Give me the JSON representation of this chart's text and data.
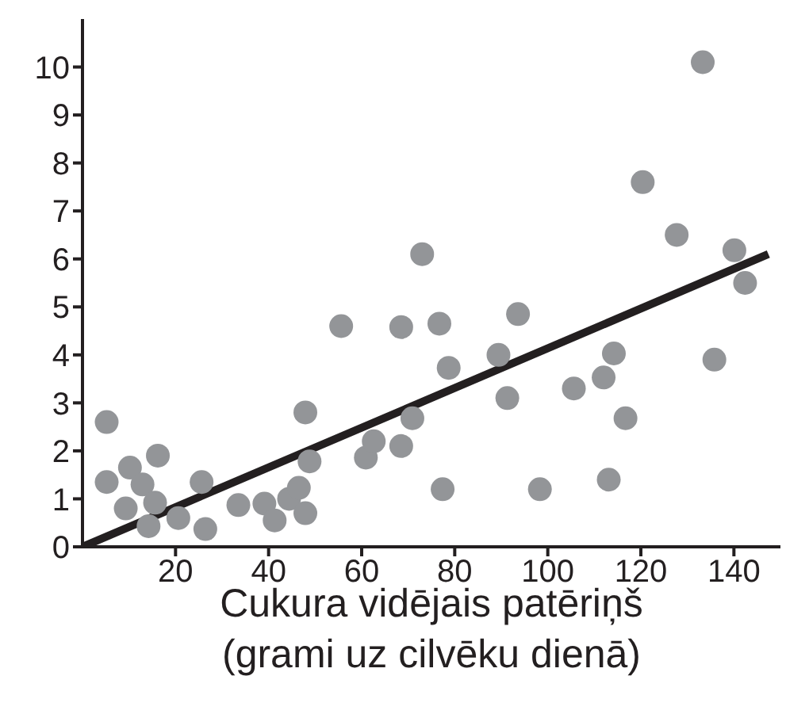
{
  "chart_data": {
    "type": "scatter",
    "xlabel": "Cukura vidējais patēriņš\n(grami uz cilvēku dienā)",
    "xlim": [
      0,
      150
    ],
    "xticks": [
      20,
      40,
      60,
      80,
      100,
      120,
      140
    ],
    "ylim": [
      0,
      11
    ],
    "yticks": [
      0,
      1,
      2,
      3,
      4,
      5,
      6,
      7,
      8,
      9,
      10
    ],
    "grid": false,
    "legend": false,
    "marker": "circle",
    "series": [
      {
        "color": "#939598",
        "x": [
          5.2,
          5.2,
          9.3,
          10.2,
          12.9,
          14.2,
          15.6,
          16.2,
          20.6,
          25.6,
          26.4,
          33.5,
          39.1,
          41.3,
          44.4,
          46.5,
          47.9,
          47.9,
          48.8,
          55.6,
          60.9,
          62.6,
          68.5,
          68.5,
          70.9,
          73,
          76.7,
          77.4,
          78.7,
          89.4,
          91.3,
          93.6,
          98.3,
          105.6,
          112,
          113.1,
          114.2,
          116.7,
          120.4,
          127.7,
          133.3,
          135.8,
          140.1,
          142.4
        ],
        "values": [
          2.6,
          1.35,
          0.8,
          1.65,
          1.3,
          0.43,
          0.92,
          1.9,
          0.6,
          1.35,
          0.37,
          0.87,
          0.9,
          0.55,
          1.0,
          1.23,
          0.7,
          2.8,
          1.78,
          4.6,
          1.86,
          2.2,
          2.1,
          4.58,
          2.68,
          6.1,
          4.65,
          1.2,
          3.73,
          4.0,
          3.1,
          4.85,
          1.2,
          3.3,
          3.53,
          1.4,
          4.03,
          2.68,
          7.6,
          6.5,
          10.1,
          3.9,
          6.18,
          5.5
        ]
      },
      {
        "type": "line",
        "color": "#231f20",
        "marker": "none",
        "line_style": "solid",
        "x": [
          0,
          147.4
        ],
        "values": [
          0,
          6.1
        ]
      }
    ]
  }
}
